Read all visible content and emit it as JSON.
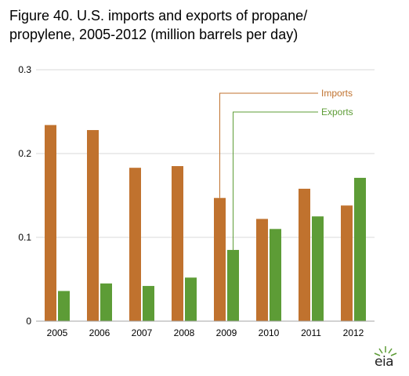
{
  "title_lines": [
    "Figure 40. U.S. imports and exports of propane/",
    "propylene, 2005-2012 (million barrels per day)"
  ],
  "logo_text": "eia",
  "colors": {
    "imports": "#c0722e",
    "exports": "#5d9c36",
    "grid": "#d9d9d9",
    "axis": "#a6a6a6"
  },
  "chart_data": {
    "type": "bar",
    "title": "Figure 40. U.S. imports and exports of propane/propylene, 2005-2012 (million barrels per day)",
    "categories": [
      "2005",
      "2006",
      "2007",
      "2008",
      "2009",
      "2010",
      "2011",
      "2012"
    ],
    "series": [
      {
        "name": "Imports",
        "values": [
          0.234,
          0.228,
          0.183,
          0.185,
          0.147,
          0.122,
          0.158,
          0.138
        ]
      },
      {
        "name": "Exports",
        "values": [
          0.036,
          0.045,
          0.042,
          0.052,
          0.085,
          0.11,
          0.125,
          0.171
        ]
      }
    ],
    "ylim": [
      0,
      0.3
    ],
    "yticks": [
      "0",
      "0.1",
      "0.2",
      "0.3"
    ],
    "grid": true,
    "legend": "inline labels with leader lines pointing to 2009 bars"
  }
}
